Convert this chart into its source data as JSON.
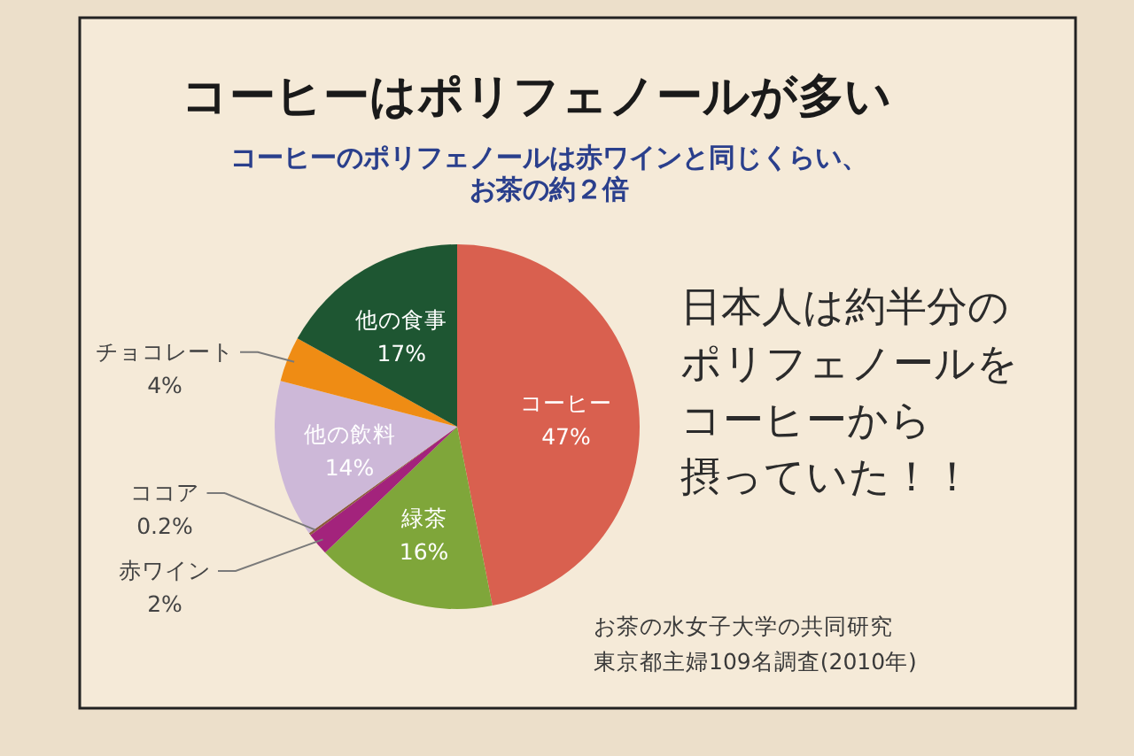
{
  "chart_data": {
    "type": "pie",
    "title": "コーヒーはポリフェノールが多い",
    "subtitle": "コーヒーのポリフェノールは赤ワインと同じくらい、お茶の約２倍",
    "categories": [
      "コーヒー",
      "緑茶",
      "赤ワイン",
      "ココア",
      "他の飲料",
      "チョコレート",
      "他の食事"
    ],
    "values": [
      47,
      16,
      2,
      0.2,
      14,
      4,
      17
    ],
    "colors": [
      "#d9604f",
      "#7fa63a",
      "#a3237c",
      "#8b5a3c",
      "#cdb8d8",
      "#ef8c14",
      "#1e5632"
    ],
    "value_labels": [
      "47%",
      "16%",
      "2%",
      "0.2%",
      "14%",
      "4%",
      "17%"
    ],
    "annotations": [
      "日本人は約半分のポリフェノールをコーヒーから摂っていた！！",
      "お茶の水女子大学の共同研究",
      "東京都主婦109名調査(2010年)"
    ]
  }
}
